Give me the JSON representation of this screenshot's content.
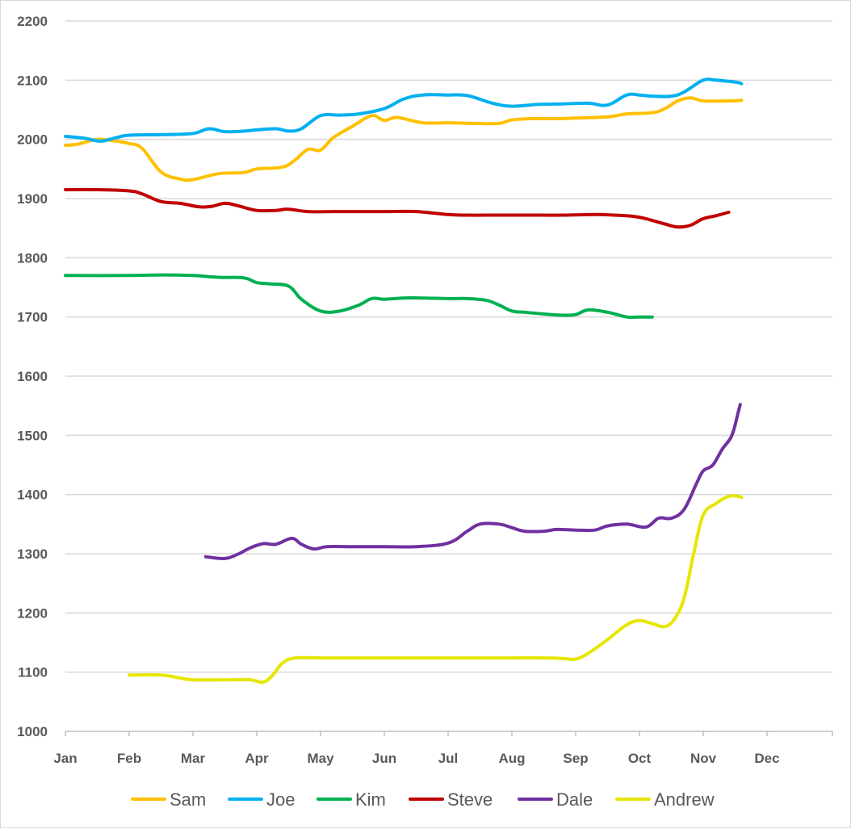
{
  "chart_data": {
    "type": "line",
    "title": "",
    "xlabel": "",
    "ylabel": "",
    "ylim": [
      1000,
      2200
    ],
    "y_ticks": [
      1000,
      1100,
      1200,
      1300,
      1400,
      1500,
      1600,
      1700,
      1800,
      1900,
      2000,
      2100,
      2200
    ],
    "categories": [
      "Jan",
      "Feb",
      "Mar",
      "Apr",
      "May",
      "Jun",
      "Jul",
      "Aug",
      "Sep",
      "Oct",
      "Nov",
      "Dec"
    ],
    "grid": "horizontal",
    "legend": "bottom",
    "x_unit": "month index (0 = Jan, 1 = Feb, ...)",
    "series": [
      {
        "name": "Sam",
        "color": "#FFC000",
        "points": [
          [
            0,
            1990
          ],
          [
            0.2,
            1992
          ],
          [
            0.5,
            2000
          ],
          [
            0.8,
            1997
          ],
          [
            1.0,
            1993
          ],
          [
            1.2,
            1985
          ],
          [
            1.5,
            1945
          ],
          [
            1.8,
            1933
          ],
          [
            2.0,
            1932
          ],
          [
            2.4,
            1942
          ],
          [
            2.8,
            1944
          ],
          [
            3.0,
            1950
          ],
          [
            3.4,
            1953
          ],
          [
            3.6,
            1965
          ],
          [
            3.8,
            1983
          ],
          [
            4.0,
            1982
          ],
          [
            4.2,
            2003
          ],
          [
            4.5,
            2022
          ],
          [
            4.8,
            2040
          ],
          [
            5.0,
            2032
          ],
          [
            5.2,
            2037
          ],
          [
            5.6,
            2028
          ],
          [
            6.0,
            2028
          ],
          [
            6.4,
            2027
          ],
          [
            6.8,
            2027
          ],
          [
            7.0,
            2033
          ],
          [
            7.3,
            2035
          ],
          [
            7.7,
            2035
          ],
          [
            8.0,
            2036
          ],
          [
            8.5,
            2038
          ],
          [
            8.8,
            2043
          ],
          [
            9.2,
            2045
          ],
          [
            9.4,
            2052
          ],
          [
            9.6,
            2065
          ],
          [
            9.8,
            2070
          ],
          [
            10.0,
            2065
          ],
          [
            10.4,
            2065
          ],
          [
            10.6,
            2066
          ]
        ]
      },
      {
        "name": "Joe",
        "color": "#00B0F0",
        "points": [
          [
            0,
            2005
          ],
          [
            0.3,
            2002
          ],
          [
            0.55,
            1997
          ],
          [
            0.8,
            2003
          ],
          [
            1.0,
            2007
          ],
          [
            1.5,
            2008
          ],
          [
            2.0,
            2010
          ],
          [
            2.25,
            2018
          ],
          [
            2.5,
            2013
          ],
          [
            2.8,
            2014
          ],
          [
            3.0,
            2016
          ],
          [
            3.3,
            2018
          ],
          [
            3.5,
            2014
          ],
          [
            3.7,
            2018
          ],
          [
            4.0,
            2040
          ],
          [
            4.3,
            2041
          ],
          [
            4.6,
            2043
          ],
          [
            5.0,
            2052
          ],
          [
            5.3,
            2068
          ],
          [
            5.6,
            2075
          ],
          [
            6.0,
            2075
          ],
          [
            6.3,
            2074
          ],
          [
            6.7,
            2061
          ],
          [
            7.0,
            2056
          ],
          [
            7.4,
            2059
          ],
          [
            7.8,
            2060
          ],
          [
            8.2,
            2061
          ],
          [
            8.5,
            2058
          ],
          [
            8.8,
            2075
          ],
          [
            9.0,
            2075
          ],
          [
            9.2,
            2073
          ],
          [
            9.5,
            2073
          ],
          [
            9.7,
            2080
          ],
          [
            10.0,
            2100
          ],
          [
            10.2,
            2100
          ],
          [
            10.4,
            2098
          ],
          [
            10.55,
            2096
          ],
          [
            10.6,
            2094
          ]
        ]
      },
      {
        "name": "Kim",
        "color": "#00B050",
        "points": [
          [
            0,
            1770
          ],
          [
            1.0,
            1770
          ],
          [
            1.5,
            1771
          ],
          [
            2.0,
            1770
          ],
          [
            2.4,
            1767
          ],
          [
            2.8,
            1766
          ],
          [
            3.0,
            1758
          ],
          [
            3.2,
            1756
          ],
          [
            3.5,
            1752
          ],
          [
            3.7,
            1730
          ],
          [
            4.0,
            1710
          ],
          [
            4.3,
            1710
          ],
          [
            4.6,
            1720
          ],
          [
            4.8,
            1731
          ],
          [
            5.0,
            1730
          ],
          [
            5.3,
            1732
          ],
          [
            5.6,
            1732
          ],
          [
            6.0,
            1731
          ],
          [
            6.3,
            1731
          ],
          [
            6.6,
            1728
          ],
          [
            6.8,
            1720
          ],
          [
            7.0,
            1710
          ],
          [
            7.2,
            1708
          ],
          [
            7.5,
            1705
          ],
          [
            7.8,
            1703
          ],
          [
            8.0,
            1704
          ],
          [
            8.2,
            1712
          ],
          [
            8.5,
            1708
          ],
          [
            8.8,
            1700
          ],
          [
            9.0,
            1700
          ],
          [
            9.2,
            1700
          ]
        ]
      },
      {
        "name": "Steve",
        "color": "#C00000",
        "points": [
          [
            0,
            1915
          ],
          [
            0.5,
            1915
          ],
          [
            1.0,
            1913
          ],
          [
            1.2,
            1908
          ],
          [
            1.5,
            1895
          ],
          [
            1.8,
            1892
          ],
          [
            2.1,
            1886
          ],
          [
            2.3,
            1887
          ],
          [
            2.5,
            1892
          ],
          [
            2.7,
            1888
          ],
          [
            3.0,
            1880
          ],
          [
            3.3,
            1880
          ],
          [
            3.5,
            1882
          ],
          [
            3.8,
            1878
          ],
          [
            4.2,
            1878
          ],
          [
            4.6,
            1878
          ],
          [
            5.0,
            1878
          ],
          [
            5.5,
            1878
          ],
          [
            6.0,
            1873
          ],
          [
            6.3,
            1872
          ],
          [
            6.8,
            1872
          ],
          [
            7.3,
            1872
          ],
          [
            7.8,
            1872
          ],
          [
            8.3,
            1873
          ],
          [
            8.6,
            1872
          ],
          [
            8.9,
            1870
          ],
          [
            9.1,
            1866
          ],
          [
            9.4,
            1857
          ],
          [
            9.6,
            1852
          ],
          [
            9.8,
            1855
          ],
          [
            10.0,
            1866
          ],
          [
            10.2,
            1871
          ],
          [
            10.4,
            1877
          ]
        ]
      },
      {
        "name": "Dale",
        "color": "#7030A0",
        "points": [
          [
            2.2,
            1295
          ],
          [
            2.5,
            1292
          ],
          [
            2.7,
            1299
          ],
          [
            2.9,
            1310
          ],
          [
            3.1,
            1317
          ],
          [
            3.3,
            1316
          ],
          [
            3.55,
            1326
          ],
          [
            3.7,
            1316
          ],
          [
            3.9,
            1308
          ],
          [
            4.1,
            1312
          ],
          [
            4.5,
            1312
          ],
          [
            5.0,
            1312
          ],
          [
            5.5,
            1312
          ],
          [
            6.0,
            1318
          ],
          [
            6.3,
            1338
          ],
          [
            6.5,
            1350
          ],
          [
            6.8,
            1350
          ],
          [
            7.0,
            1344
          ],
          [
            7.2,
            1338
          ],
          [
            7.5,
            1338
          ],
          [
            7.7,
            1341
          ],
          [
            8.0,
            1340
          ],
          [
            8.3,
            1340
          ],
          [
            8.5,
            1347
          ],
          [
            8.8,
            1350
          ],
          [
            9.1,
            1345
          ],
          [
            9.3,
            1360
          ],
          [
            9.5,
            1360
          ],
          [
            9.7,
            1375
          ],
          [
            9.9,
            1420
          ],
          [
            10.0,
            1440
          ],
          [
            10.15,
            1450
          ],
          [
            10.3,
            1477
          ],
          [
            10.45,
            1500
          ],
          [
            10.55,
            1540
          ],
          [
            10.58,
            1552
          ]
        ]
      },
      {
        "name": "Andrew",
        "color": "#E6E600",
        "points": [
          [
            1.0,
            1095
          ],
          [
            1.5,
            1095
          ],
          [
            1.8,
            1090
          ],
          [
            2.0,
            1087
          ],
          [
            2.5,
            1087
          ],
          [
            2.9,
            1087
          ],
          [
            3.1,
            1083
          ],
          [
            3.25,
            1095
          ],
          [
            3.4,
            1115
          ],
          [
            3.6,
            1124
          ],
          [
            4.0,
            1124
          ],
          [
            4.5,
            1124
          ],
          [
            5.0,
            1124
          ],
          [
            5.5,
            1124
          ],
          [
            6.0,
            1124
          ],
          [
            6.5,
            1124
          ],
          [
            7.0,
            1124
          ],
          [
            7.5,
            1124
          ],
          [
            7.8,
            1123
          ],
          [
            8.0,
            1122
          ],
          [
            8.2,
            1132
          ],
          [
            8.5,
            1155
          ],
          [
            8.8,
            1180
          ],
          [
            9.0,
            1187
          ],
          [
            9.2,
            1182
          ],
          [
            9.4,
            1177
          ],
          [
            9.55,
            1190
          ],
          [
            9.7,
            1225
          ],
          [
            9.85,
            1300
          ],
          [
            10.0,
            1365
          ],
          [
            10.2,
            1385
          ],
          [
            10.4,
            1397
          ],
          [
            10.55,
            1397
          ],
          [
            10.6,
            1395
          ]
        ]
      }
    ]
  }
}
